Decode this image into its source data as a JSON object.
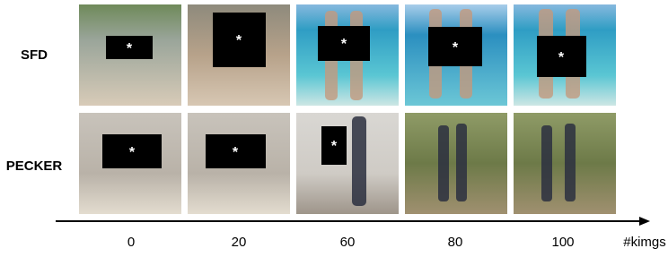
{
  "rows": [
    {
      "label": "SFD"
    },
    {
      "label": "PECKER"
    }
  ],
  "censor_mark": "*",
  "axis": {
    "ticks": [
      "0",
      "20",
      "60",
      "80",
      "100"
    ],
    "label": "#kimgs"
  }
}
